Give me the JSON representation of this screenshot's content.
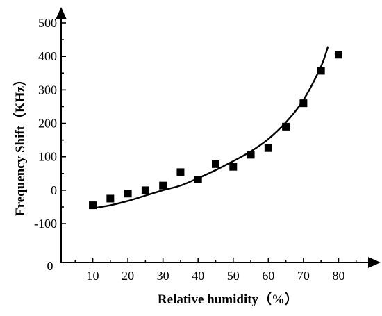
{
  "chart_data": {
    "type": "scatter",
    "title": "",
    "xlabel": "Relative humidity（%）",
    "ylabel": "Frequency Shift（KHz）",
    "xlim": [
      0,
      90
    ],
    "ylim": [
      -160,
      500
    ],
    "x_ticks": [
      10,
      20,
      30,
      40,
      50,
      60,
      70,
      80
    ],
    "y_ticks": [
      -100,
      0,
      100,
      200,
      300,
      400,
      500
    ],
    "x_origin_label": "0",
    "grid": false,
    "legend": "none",
    "series": [
      {
        "kind": "points",
        "marker": "square",
        "color": "#000000",
        "x": [
          10,
          15,
          20,
          25,
          30,
          35,
          40,
          45,
          50,
          55,
          60,
          65,
          70,
          75,
          80
        ],
        "y": [
          -45,
          -25,
          -10,
          0,
          14,
          54,
          32,
          78,
          70,
          106,
          126,
          190,
          260,
          357,
          405
        ]
      },
      {
        "kind": "fit-curve",
        "color": "#000000",
        "x": [
          10,
          15,
          20,
          25,
          30,
          35,
          40,
          45,
          50,
          55,
          60,
          65,
          70,
          75,
          77
        ],
        "y": [
          -54,
          -45,
          -32,
          -16,
          0,
          14,
          36,
          60,
          87,
          116,
          153,
          203,
          270,
          370,
          430
        ]
      }
    ]
  }
}
